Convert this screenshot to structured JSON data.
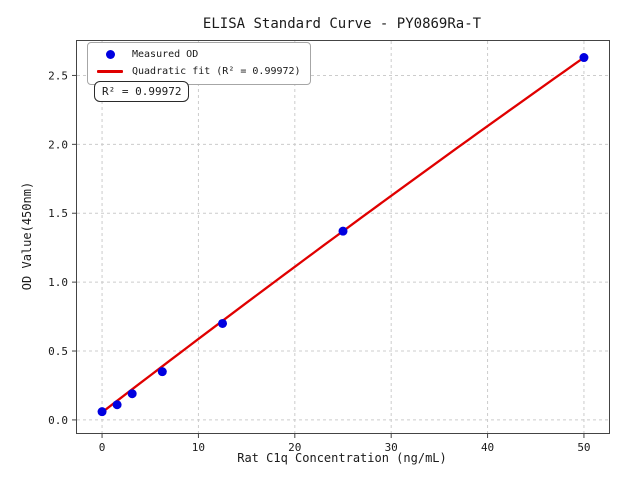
{
  "figure": {
    "title": "ELISA Standard Curve - PY0869Ra-T"
  },
  "chart_data": {
    "type": "scatter",
    "title": "ELISA Standard Curve - PY0869Ra-T",
    "xlabel": "Rat C1q Concentration (ng/mL)",
    "ylabel": "OD Value(450nm)",
    "xlim": [
      -2.6,
      52.6
    ],
    "ylim": [
      -0.095,
      2.75
    ],
    "grid": true,
    "grid_style": "dashed",
    "legend_position": "upper left",
    "x_ticks": {
      "values": [
        0,
        10,
        20,
        30,
        40,
        50
      ],
      "labels": [
        "0",
        "10",
        "20",
        "30",
        "40",
        "50"
      ]
    },
    "y_ticks": {
      "values": [
        0,
        0.5,
        1.0,
        1.5,
        2.0,
        2.5
      ],
      "labels": [
        "0.0",
        "0.5",
        "1.0",
        "1.5",
        "2.0",
        "2.5"
      ]
    },
    "series": [
      {
        "name": "Measured OD",
        "type": "scatter",
        "color": "#0000e0",
        "marker": "circle",
        "x": [
          0,
          1.5625,
          3.125,
          6.25,
          12.5,
          25,
          50
        ],
        "y": [
          0.06,
          0.11,
          0.19,
          0.35,
          0.7,
          1.37,
          2.63
        ]
      },
      {
        "name": "Quadratic fit (R² = 0.99972)",
        "type": "line",
        "color": "#e00000",
        "fit": {
          "kind": "quadratic",
          "a": 0.055,
          "b": 0.0537,
          "c": -4.4e-05,
          "x_range": [
            0,
            50
          ]
        }
      }
    ],
    "r_squared": 0.99972
  },
  "legend": {
    "items": [
      {
        "label": "Measured OD"
      },
      {
        "label": "Quadratic fit (R² = 0.99972)"
      }
    ]
  },
  "annotation": {
    "text": "R² = 0.99972"
  },
  "colors": {
    "marker": "#0000e0",
    "fit_line": "#e00000",
    "grid": "#cccccc",
    "spine": "#444444",
    "text": "#1a1a1a"
  }
}
